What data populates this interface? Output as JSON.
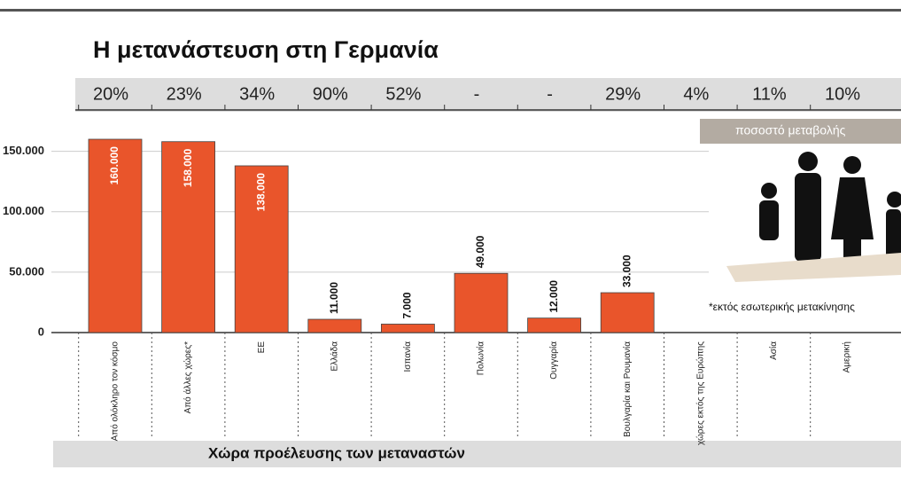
{
  "chart_data": {
    "type": "bar",
    "title": "Η μετανάστευση στη Γερμανία",
    "categories": [
      "Από ολόκληρο τον κόσμο",
      "Από άλλες χώρες*",
      "ΕΕ",
      "Ελλάδα",
      "Ισπανία",
      "Πολωνία",
      "Ουγγαρία",
      "Βουλγαρία και Ρουμανία",
      "χώρες εκτός της Ευρώπης",
      "Ασία",
      "Αμερική"
    ],
    "values": [
      160000,
      158000,
      138000,
      11000,
      7000,
      49000,
      12000,
      33000,
      null,
      null,
      null
    ],
    "value_labels": [
      "160.000",
      "158.000",
      "138.000",
      "11.000",
      "7.000",
      "49.000",
      "12.000",
      "33.000",
      null,
      null,
      null
    ],
    "change": [
      "20%",
      "23%",
      "34%",
      "90%",
      "52%",
      "-",
      "-",
      "29%",
      "4%",
      "11%",
      "10%"
    ],
    "change_label": "ποσοστό μεταβολής",
    "note": "*εκτός εσωτερικής μετακίνησης",
    "xlabel": "Χώρα προέλευσης των μεταναστών",
    "color": "#e9552b",
    "ylim": [
      0,
      160000
    ],
    "yticks": [
      0,
      {
        "value": 50000,
        "label": "50.000"
      },
      {
        "value": 100000,
        "label": "100.000"
      },
      {
        "value": 150000,
        "label": "150.000"
      }
    ],
    "grid": true
  }
}
